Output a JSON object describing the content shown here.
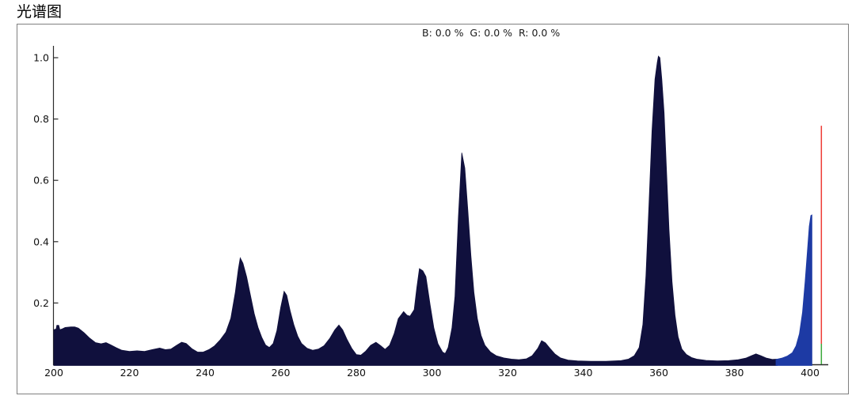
{
  "header": {
    "title": "光谱图",
    "rgb_readout": "B: 0.0 %  G: 0.0 %  R: 0.0 %"
  },
  "colors": {
    "uv_fill": "#10103d",
    "visible_fill": "#1d3aa4",
    "red_marker": "#ee3a33",
    "green_marker": "#3aa83a",
    "axis": "#2b2b2b",
    "panel_border": "#7f7f7f",
    "tick_text": "#111111"
  },
  "chart_data": {
    "type": "area",
    "title": "光谱图",
    "annotation": "B: 0.0 %  G: 0.0 %  R: 0.0 %",
    "xlabel": "",
    "ylabel": "",
    "xlim": [
      200,
      404.8
    ],
    "ylim": [
      0,
      1.04
    ],
    "x_ticks": [
      200,
      220,
      240,
      260,
      280,
      300,
      320,
      340,
      360,
      380,
      400
    ],
    "y_ticks": [
      0.2,
      0.4,
      0.6,
      0.8,
      1.0
    ],
    "grid": false,
    "legend_position": "none",
    "series": [
      {
        "name": "spectrum-uv-region",
        "color": "#10103d",
        "points": [
          [
            200,
            0.113
          ],
          [
            200.6,
            0.115
          ],
          [
            200.8,
            0.127
          ],
          [
            201.3,
            0.127
          ],
          [
            201.6,
            0.113
          ],
          [
            202.3,
            0.116
          ],
          [
            203,
            0.12
          ],
          [
            204.5,
            0.122
          ],
          [
            205.5,
            0.122
          ],
          [
            206.5,
            0.118
          ],
          [
            208,
            0.103
          ],
          [
            209.5,
            0.085
          ],
          [
            211,
            0.071
          ],
          [
            212.5,
            0.067
          ],
          [
            213.8,
            0.071
          ],
          [
            215,
            0.064
          ],
          [
            216.5,
            0.054
          ],
          [
            218,
            0.046
          ],
          [
            220,
            0.042
          ],
          [
            222,
            0.044
          ],
          [
            224,
            0.042
          ],
          [
            226,
            0.048
          ],
          [
            228,
            0.053
          ],
          [
            229.5,
            0.048
          ],
          [
            231,
            0.05
          ],
          [
            232.5,
            0.062
          ],
          [
            233.8,
            0.072
          ],
          [
            235,
            0.068
          ],
          [
            236.5,
            0.051
          ],
          [
            238,
            0.04
          ],
          [
            239.5,
            0.04
          ],
          [
            241,
            0.048
          ],
          [
            242.5,
            0.06
          ],
          [
            244,
            0.08
          ],
          [
            245.5,
            0.105
          ],
          [
            246.8,
            0.15
          ],
          [
            248,
            0.235
          ],
          [
            248.8,
            0.31
          ],
          [
            249.3,
            0.347
          ],
          [
            250,
            0.33
          ],
          [
            251,
            0.285
          ],
          [
            252,
            0.225
          ],
          [
            253,
            0.165
          ],
          [
            254,
            0.12
          ],
          [
            255,
            0.088
          ],
          [
            256,
            0.063
          ],
          [
            257,
            0.055
          ],
          [
            258,
            0.068
          ],
          [
            259,
            0.11
          ],
          [
            260,
            0.185
          ],
          [
            260.9,
            0.238
          ],
          [
            261.6,
            0.225
          ],
          [
            262.5,
            0.175
          ],
          [
            263.5,
            0.128
          ],
          [
            264.5,
            0.092
          ],
          [
            265.5,
            0.068
          ],
          [
            267,
            0.052
          ],
          [
            268.5,
            0.046
          ],
          [
            270,
            0.05
          ],
          [
            271.5,
            0.061
          ],
          [
            273,
            0.085
          ],
          [
            274.3,
            0.112
          ],
          [
            275.4,
            0.128
          ],
          [
            276.4,
            0.112
          ],
          [
            277.5,
            0.082
          ],
          [
            278.8,
            0.052
          ],
          [
            280,
            0.032
          ],
          [
            281.2,
            0.03
          ],
          [
            282.5,
            0.043
          ],
          [
            283.8,
            0.062
          ],
          [
            285.2,
            0.072
          ],
          [
            286.4,
            0.061
          ],
          [
            287.6,
            0.049
          ],
          [
            288.8,
            0.062
          ],
          [
            290,
            0.1
          ],
          [
            291.1,
            0.149
          ],
          [
            292.5,
            0.172
          ],
          [
            293.4,
            0.16
          ],
          [
            294.2,
            0.157
          ],
          [
            295.3,
            0.178
          ],
          [
            296,
            0.25
          ],
          [
            296.7,
            0.312
          ],
          [
            297.6,
            0.305
          ],
          [
            298.4,
            0.286
          ],
          [
            299.5,
            0.196
          ],
          [
            300.5,
            0.119
          ],
          [
            301.6,
            0.067
          ],
          [
            302.8,
            0.04
          ],
          [
            303.5,
            0.035
          ],
          [
            304.3,
            0.055
          ],
          [
            305.3,
            0.119
          ],
          [
            306.1,
            0.222
          ],
          [
            307,
            0.48
          ],
          [
            307.9,
            0.69
          ],
          [
            308.7,
            0.64
          ],
          [
            309.5,
            0.5
          ],
          [
            310.3,
            0.355
          ],
          [
            311.1,
            0.235
          ],
          [
            312,
            0.15
          ],
          [
            313,
            0.094
          ],
          [
            314,
            0.062
          ],
          [
            315.5,
            0.04
          ],
          [
            317,
            0.028
          ],
          [
            319,
            0.021
          ],
          [
            321,
            0.017
          ],
          [
            323,
            0.015
          ],
          [
            325,
            0.018
          ],
          [
            326.5,
            0.028
          ],
          [
            328,
            0.052
          ],
          [
            329,
            0.077
          ],
          [
            330,
            0.07
          ],
          [
            331.2,
            0.052
          ],
          [
            332.5,
            0.034
          ],
          [
            334,
            0.021
          ],
          [
            336,
            0.014
          ],
          [
            338.5,
            0.011
          ],
          [
            342,
            0.01
          ],
          [
            346,
            0.01
          ],
          [
            350,
            0.012
          ],
          [
            352,
            0.017
          ],
          [
            353.5,
            0.028
          ],
          [
            354.8,
            0.055
          ],
          [
            355.8,
            0.13
          ],
          [
            356.6,
            0.29
          ],
          [
            357.4,
            0.52
          ],
          [
            358.2,
            0.76
          ],
          [
            359,
            0.93
          ],
          [
            359.6,
            0.985
          ],
          [
            359.9,
            1.005
          ],
          [
            360.3,
            1.0
          ],
          [
            360.8,
            0.93
          ],
          [
            361.4,
            0.82
          ],
          [
            362,
            0.64
          ],
          [
            362.7,
            0.44
          ],
          [
            363.5,
            0.27
          ],
          [
            364.3,
            0.16
          ],
          [
            365.1,
            0.09
          ],
          [
            366.1,
            0.05
          ],
          [
            367.3,
            0.032
          ],
          [
            368.7,
            0.022
          ],
          [
            370,
            0.017
          ],
          [
            372.5,
            0.013
          ],
          [
            375.5,
            0.011
          ],
          [
            378.5,
            0.012
          ],
          [
            381,
            0.015
          ],
          [
            383,
            0.02
          ],
          [
            384.5,
            0.028
          ],
          [
            385.7,
            0.034
          ],
          [
            387,
            0.028
          ],
          [
            388.5,
            0.02
          ],
          [
            390,
            0.016
          ],
          [
            391.3,
            0.017
          ]
        ]
      },
      {
        "name": "spectrum-visible-region",
        "color": "#1d3aa4",
        "points": [
          [
            391,
            0.016
          ],
          [
            392.5,
            0.02
          ],
          [
            394,
            0.027
          ],
          [
            395.3,
            0.038
          ],
          [
            396.3,
            0.06
          ],
          [
            397.2,
            0.1
          ],
          [
            398,
            0.17
          ],
          [
            398.7,
            0.27
          ],
          [
            399.3,
            0.37
          ],
          [
            399.8,
            0.45
          ],
          [
            400.2,
            0.485
          ],
          [
            400.5,
            0.487
          ]
        ]
      }
    ],
    "markers": [
      {
        "name": "red-marker-line",
        "x": 403,
        "y_from": 0.067,
        "y_to": 0.778,
        "color": "#ee3a33"
      },
      {
        "name": "green-marker-line",
        "x": 403,
        "y_from": 0.0,
        "y_to": 0.067,
        "color": "#3aa83a"
      }
    ]
  }
}
